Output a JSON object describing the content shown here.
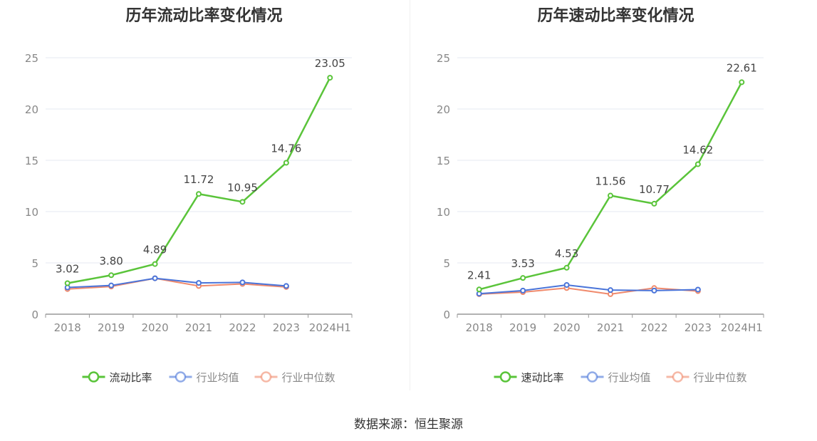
{
  "chart_data": [
    {
      "type": "line",
      "title": "历年流动比率变化情况",
      "categories": [
        "2018",
        "2019",
        "2020",
        "2021",
        "2022",
        "2023",
        "2024H1"
      ],
      "ylim": [
        0,
        25
      ],
      "yticks": [
        "0",
        "5",
        "10",
        "15",
        "20",
        "25"
      ],
      "grid": true,
      "legend_position": "bottom",
      "series": [
        {
          "name": "流动比率",
          "color": "#5ac43a",
          "values": [
            3.02,
            3.8,
            4.89,
            11.72,
            10.95,
            14.76,
            23.05
          ],
          "labels": [
            "3.02",
            "3.80",
            "4.89",
            "11.72",
            "10.95",
            "14.76",
            "23.05"
          ]
        },
        {
          "name": "行业均值",
          "color": "#4a74d9",
          "values": [
            2.6,
            2.8,
            3.5,
            3.05,
            3.1,
            2.75,
            null
          ]
        },
        {
          "name": "行业中位数",
          "color": "#f08a6c",
          "values": [
            2.45,
            2.7,
            3.5,
            2.75,
            2.95,
            2.65,
            null
          ]
        }
      ]
    },
    {
      "type": "line",
      "title": "历年速动比率变化情况",
      "categories": [
        "2018",
        "2019",
        "2020",
        "2021",
        "2022",
        "2023",
        "2024H1"
      ],
      "ylim": [
        0,
        25
      ],
      "yticks": [
        "0",
        "5",
        "10",
        "15",
        "20",
        "25"
      ],
      "grid": true,
      "legend_position": "bottom",
      "series": [
        {
          "name": "速动比率",
          "color": "#5ac43a",
          "values": [
            2.41,
            3.53,
            4.53,
            11.56,
            10.77,
            14.62,
            22.61
          ],
          "labels": [
            "2.41",
            "3.53",
            "4.53",
            "11.56",
            "10.77",
            "14.62",
            "22.61"
          ]
        },
        {
          "name": "行业均值",
          "color": "#4a74d9",
          "values": [
            2.0,
            2.3,
            2.85,
            2.35,
            2.3,
            2.4,
            null
          ]
        },
        {
          "name": "行业中位数",
          "color": "#f08a6c",
          "values": [
            1.95,
            2.15,
            2.55,
            1.95,
            2.55,
            2.25,
            null
          ]
        }
      ]
    }
  ],
  "source_text": "数据来源：恒生聚源"
}
